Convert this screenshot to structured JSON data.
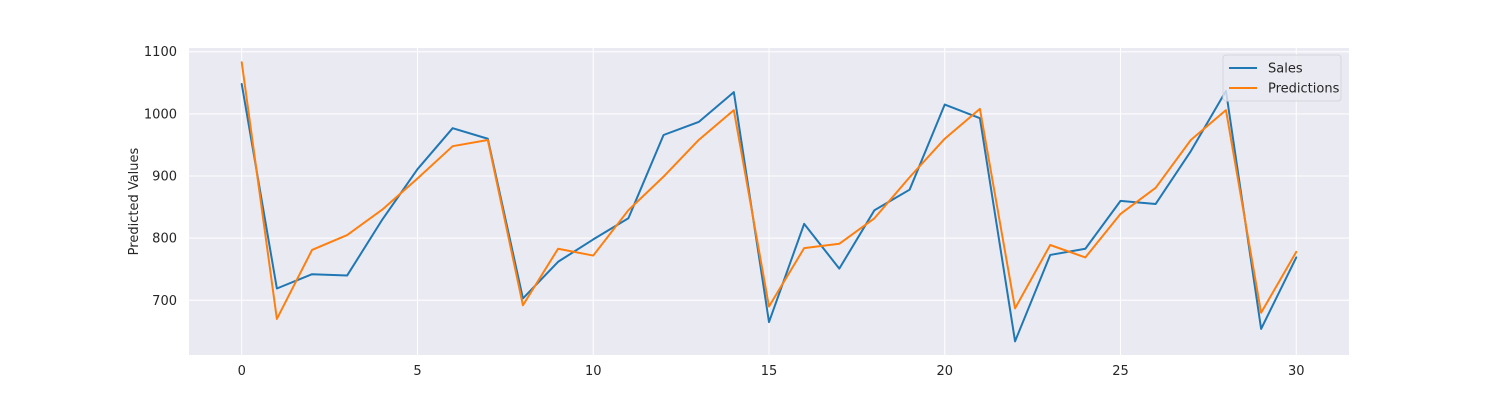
{
  "chart_data": {
    "type": "line",
    "title": "",
    "xlabel": "",
    "ylabel": "Predicted Values",
    "x": [
      0,
      1,
      2,
      3,
      4,
      5,
      6,
      7,
      8,
      9,
      10,
      11,
      12,
      13,
      14,
      15,
      16,
      17,
      18,
      19,
      20,
      21,
      22,
      23,
      24,
      25,
      26,
      27,
      28,
      29,
      30
    ],
    "xlim": [
      -1.5,
      31.5
    ],
    "ylim": [
      612,
      1106
    ],
    "xticks": [
      0,
      5,
      10,
      15,
      20,
      25,
      30
    ],
    "yticks": [
      700,
      800,
      900,
      1000,
      1100
    ],
    "grid": true,
    "legend": "top-right",
    "series": [
      {
        "name": "Sales",
        "color": "#1f77b4",
        "values": [
          1048,
          719,
          742,
          740,
          830,
          911,
          977,
          960,
          703,
          762,
          798,
          832,
          966,
          987,
          1035,
          665,
          823,
          751,
          845,
          878,
          1015,
          993,
          634,
          773,
          783,
          860,
          855,
          940,
          1037,
          654,
          769
        ]
      },
      {
        "name": "Predictions",
        "color": "#ff7f0e",
        "values": [
          1083,
          670,
          781,
          805,
          846,
          896,
          948,
          958,
          692,
          783,
          772,
          845,
          899,
          958,
          1006,
          690,
          784,
          791,
          832,
          898,
          960,
          1008,
          687,
          789,
          769,
          839,
          881,
          958,
          1006,
          680,
          778
        ]
      }
    ]
  }
}
